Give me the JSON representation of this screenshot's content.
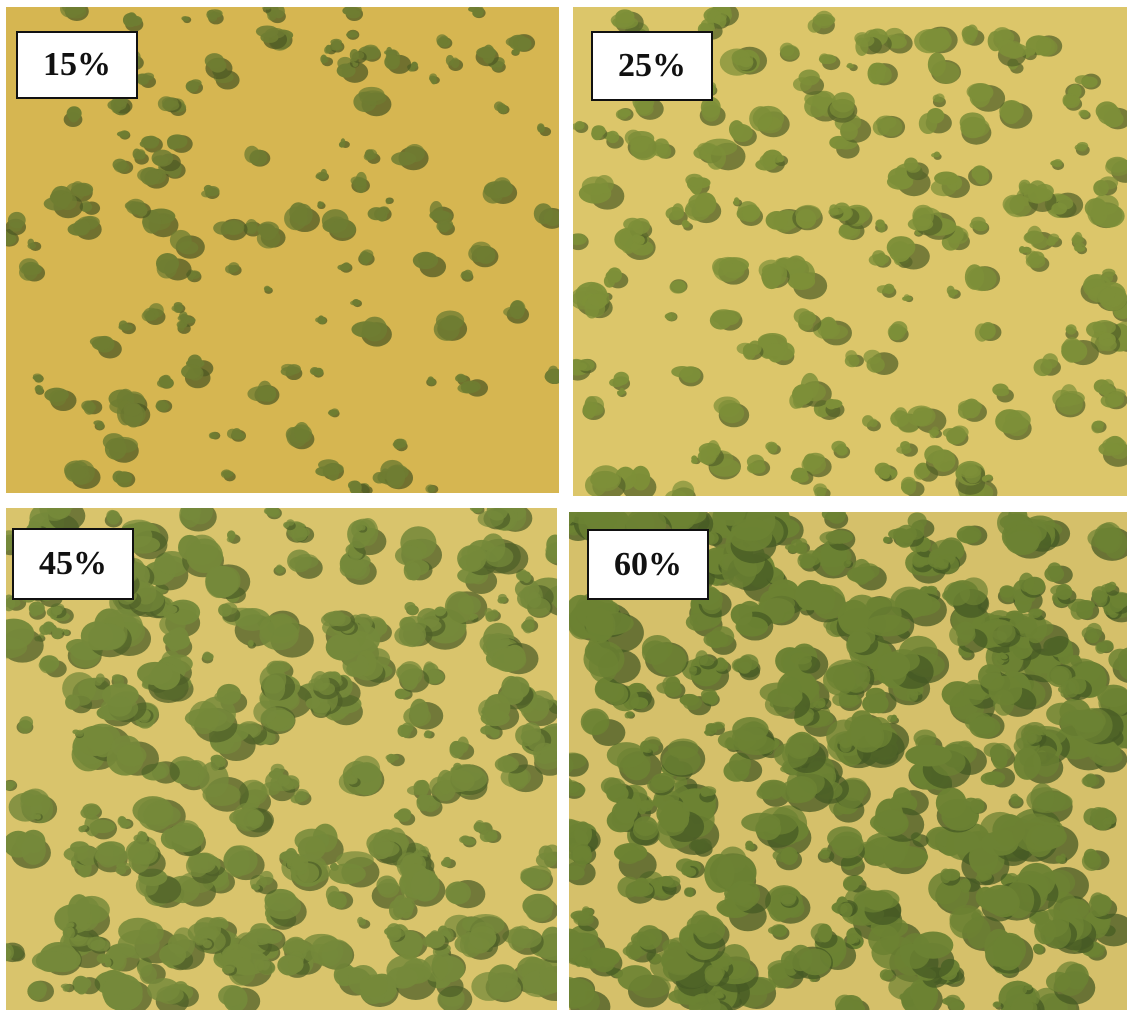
{
  "panels": [
    {
      "label": "15%",
      "cover_fraction": 0.15,
      "ground_color": "#d6b651",
      "shrub_color": "#6f7d32",
      "shadow_color": "#4f5a24"
    },
    {
      "label": "25%",
      "cover_fraction": 0.25,
      "ground_color": "#dcc66a",
      "shrub_color": "#7d8f38",
      "shadow_color": "#55632a"
    },
    {
      "label": "45%",
      "cover_fraction": 0.45,
      "ground_color": "#d9c46c",
      "shrub_color": "#75893a",
      "shadow_color": "#4f6028"
    },
    {
      "label": "60%",
      "cover_fraction": 0.6,
      "ground_color": "#d5c06a",
      "shrub_color": "#6c8233",
      "shadow_color": "#465a24"
    }
  ]
}
